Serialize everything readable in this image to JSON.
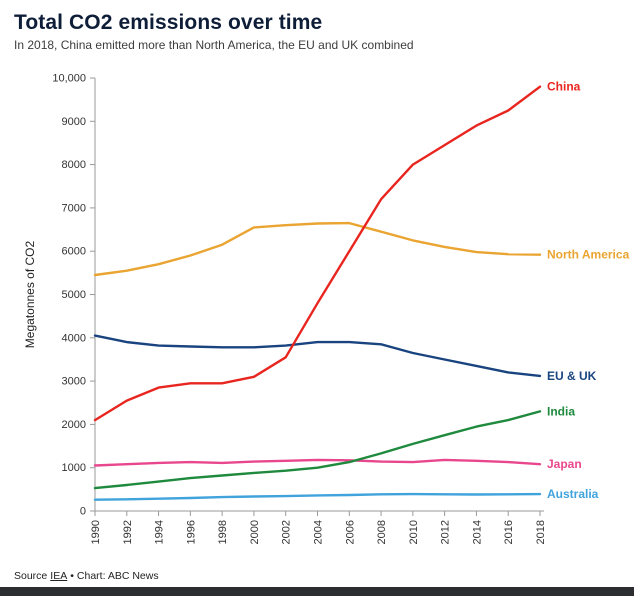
{
  "header": {
    "title": "Total CO2 emissions over time",
    "subtitle": "In 2018, China emitted more than North America, the EU and UK combined"
  },
  "chart_data": {
    "type": "line",
    "title": "Total CO2 emissions over time",
    "subtitle": "In 2018, China emitted more than North America, the EU and UK combined",
    "xlabel": "",
    "ylabel": "Megatonnes of CO2",
    "x_range": [
      1990,
      2018
    ],
    "ylim": [
      0,
      10000
    ],
    "grid": false,
    "legend_position": "right-end-labels",
    "x": [
      1990,
      1992,
      1994,
      1996,
      1998,
      2000,
      2002,
      2004,
      2006,
      2008,
      2010,
      2012,
      2014,
      2016,
      2018
    ],
    "x_tick_labels": [
      "1990",
      "1992",
      "1994",
      "1996",
      "1998",
      "2000",
      "2002",
      "2004",
      "2006",
      "2008",
      "2010",
      "2012",
      "2014",
      "2016",
      "2018"
    ],
    "y_ticks": [
      {
        "value": 0,
        "label": "0"
      },
      {
        "value": 1000,
        "label": "1000"
      },
      {
        "value": 2000,
        "label": "2000"
      },
      {
        "value": 3000,
        "label": "3000"
      },
      {
        "value": 4000,
        "label": "4000"
      },
      {
        "value": 5000,
        "label": "5000"
      },
      {
        "value": 6000,
        "label": "6000"
      },
      {
        "value": 7000,
        "label": "7000"
      },
      {
        "value": 8000,
        "label": "8000"
      },
      {
        "value": 9000,
        "label": "9000"
      },
      {
        "value": 10000,
        "label": "10,000"
      }
    ],
    "series": [
      {
        "name": "China",
        "color": "#e8251f",
        "values": [
          2100,
          2550,
          2850,
          2950,
          2950,
          3100,
          3550,
          4800,
          6000,
          7200,
          8000,
          8450,
          8900,
          9250,
          9800
        ]
      },
      {
        "name": "North America",
        "color": "#eaa431",
        "values": [
          5450,
          5550,
          5700,
          5900,
          6150,
          6550,
          6600,
          6640,
          6650,
          6450,
          6250,
          6100,
          5980,
          5930,
          5920
        ]
      },
      {
        "name": "EU & UK",
        "color": "#1a4480",
        "values": [
          4050,
          3900,
          3820,
          3800,
          3780,
          3780,
          3820,
          3900,
          3900,
          3850,
          3650,
          3500,
          3350,
          3200,
          3120
        ]
      },
      {
        "name": "India",
        "color": "#1f8a3e",
        "values": [
          530,
          600,
          680,
          760,
          820,
          880,
          930,
          1000,
          1130,
          1330,
          1550,
          1750,
          1950,
          2100,
          2300
        ]
      },
      {
        "name": "Japan",
        "color": "#e9478d",
        "values": [
          1050,
          1080,
          1110,
          1130,
          1110,
          1140,
          1160,
          1180,
          1170,
          1140,
          1130,
          1180,
          1160,
          1130,
          1080
        ]
      },
      {
        "name": "Australia",
        "color": "#41a3dc",
        "values": [
          260,
          270,
          285,
          300,
          320,
          335,
          345,
          360,
          370,
          385,
          390,
          385,
          380,
          385,
          390
        ]
      }
    ]
  },
  "footer": {
    "source_prefix": "Source",
    "source_link": "IEA",
    "separator": "•",
    "chart_credit": "Chart: ABC News"
  },
  "colors": {
    "bottom_bar": "#2b2d31",
    "axis": "#9a9a9a",
    "title_text": "#0f1e38"
  }
}
